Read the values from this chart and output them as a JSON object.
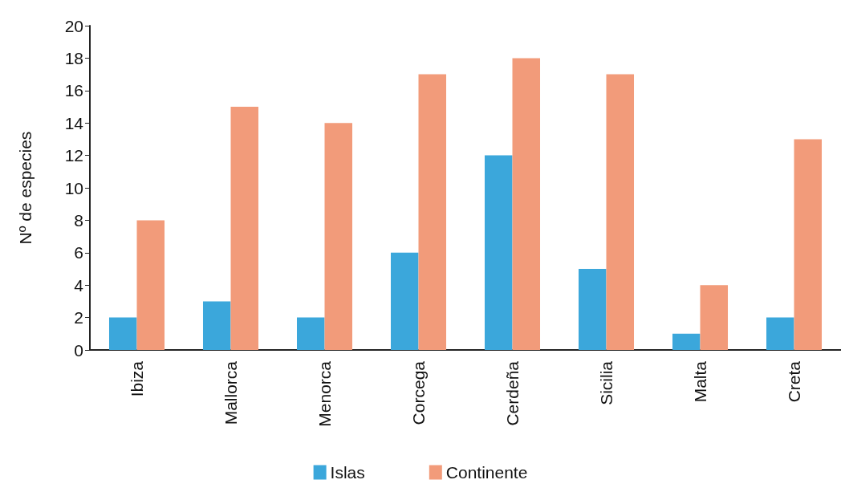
{
  "chart_data": {
    "type": "bar",
    "ylabel": "Nº de especies",
    "categories": [
      "Ibiza",
      "Mallorca",
      "Menorca",
      "Corcega",
      "Cerdeña",
      "Sicilia",
      "Malta",
      "Creta"
    ],
    "series": [
      {
        "name": "Islas",
        "color": "#3ba7db",
        "values": [
          2,
          3,
          2,
          6,
          12,
          5,
          1,
          2
        ]
      },
      {
        "name": "Continente",
        "color": "#f29b7a",
        "values": [
          8,
          15,
          14,
          17,
          18,
          17,
          4,
          13
        ]
      }
    ],
    "ylim": [
      0,
      20
    ],
    "yticks": [
      0,
      2,
      4,
      6,
      8,
      10,
      12,
      14,
      16,
      18,
      20
    ],
    "grid": false,
    "legend": "bottom"
  }
}
